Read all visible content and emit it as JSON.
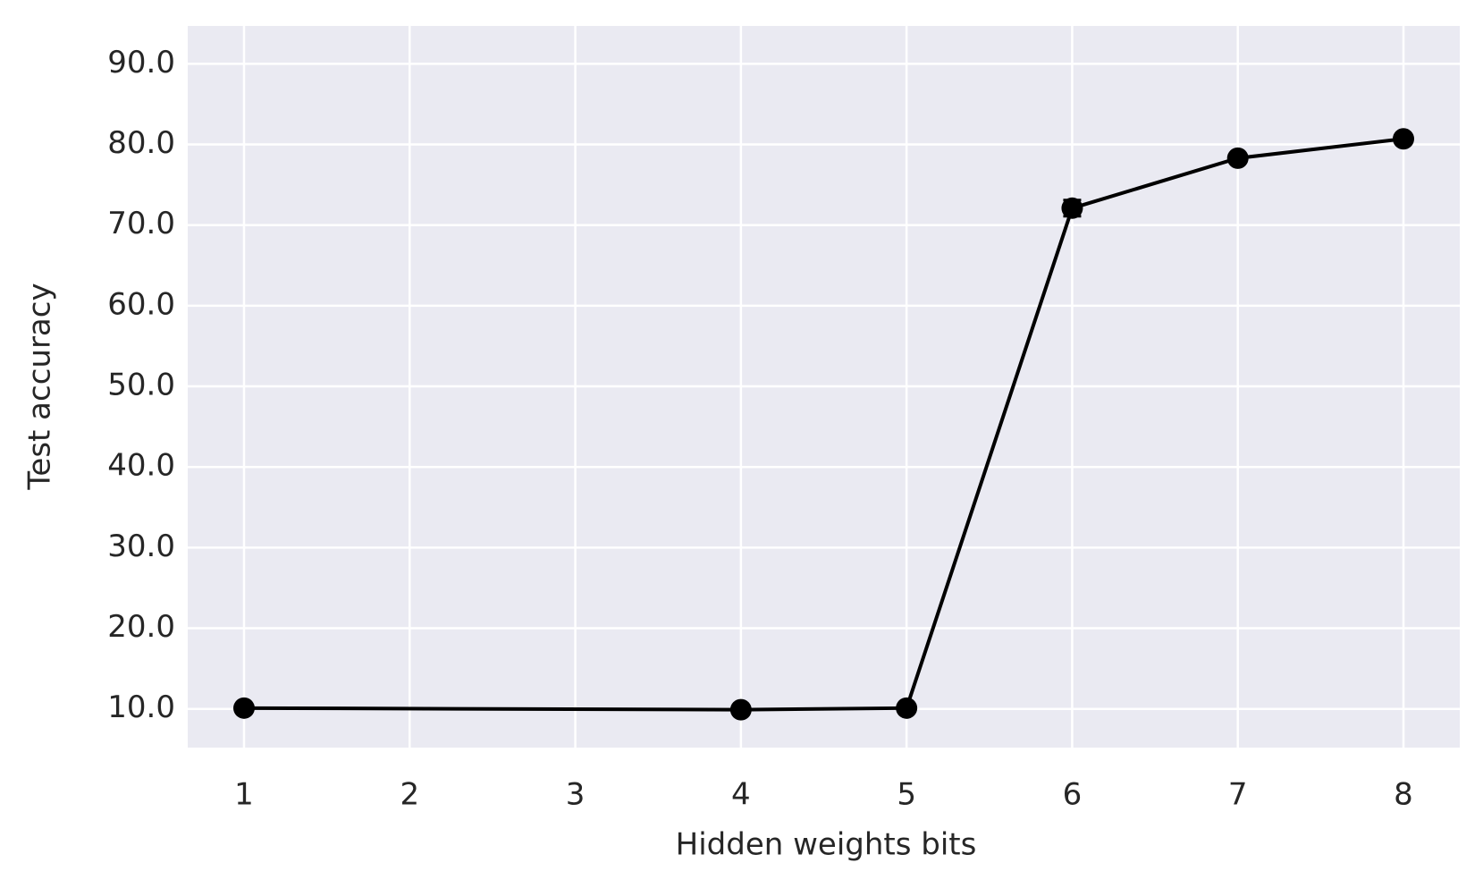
{
  "chart_data": {
    "type": "line",
    "xlabel": "Hidden weights bits",
    "ylabel": "Test accuracy",
    "x": [
      1,
      4,
      5,
      6,
      7,
      8
    ],
    "values": [
      10.1,
      9.9,
      10.1,
      72.1,
      78.3,
      80.7
    ],
    "errors": [
      0.3,
      0.3,
      0.3,
      1.0,
      0.5,
      0.4
    ],
    "color": "#000000",
    "background": "#eaeaf2",
    "grid": true,
    "xlim": [
      0.66,
      8.34
    ],
    "ylim": [
      5.2,
      94.7
    ],
    "xticks": [
      1,
      2,
      3,
      4,
      5,
      6,
      7,
      8
    ],
    "yticks": [
      {
        "value": 10,
        "label": "10.0"
      },
      {
        "value": 20,
        "label": "20.0"
      },
      {
        "value": 30,
        "label": "30.0"
      },
      {
        "value": 40,
        "label": "40.0"
      },
      {
        "value": 50,
        "label": "50.0"
      },
      {
        "value": 60,
        "label": "60.0"
      },
      {
        "value": 70,
        "label": "70.0"
      },
      {
        "value": 80,
        "label": "80.0"
      },
      {
        "value": 90,
        "label": "90.0"
      }
    ]
  }
}
